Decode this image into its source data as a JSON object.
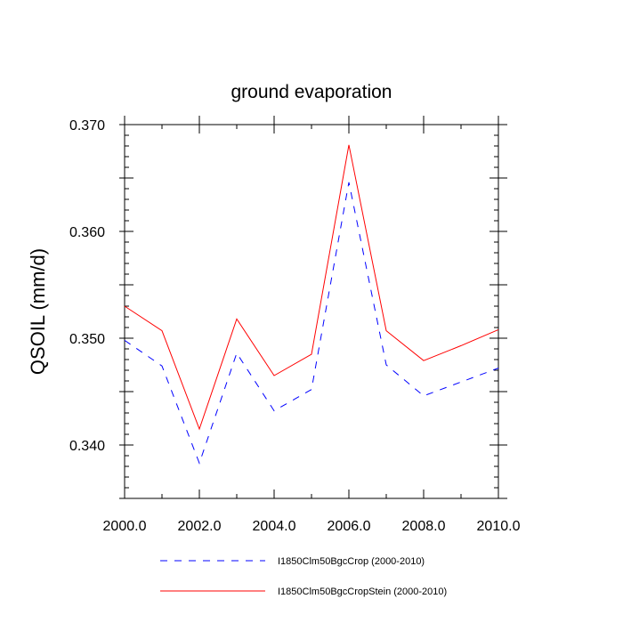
{
  "chart_data": {
    "type": "line",
    "title": "ground evaporation",
    "xlabel": "",
    "ylabel": "QSOIL  (mm/d)",
    "xlim": [
      2000,
      2010
    ],
    "ylim": [
      0.335,
      0.37
    ],
    "x": [
      2000,
      2001,
      2002,
      2003,
      2004,
      2005,
      2006,
      2007,
      2008,
      2009,
      2010
    ],
    "x_ticks": [
      2000,
      2002,
      2004,
      2006,
      2008,
      2010
    ],
    "x_tick_labels": [
      "2000.0",
      "2002.0",
      "2004.0",
      "2006.0",
      "2008.0",
      "2010.0"
    ],
    "y_ticks": [
      0.34,
      0.35,
      0.36,
      0.37
    ],
    "y_tick_labels": [
      "0.340",
      "0.350",
      "0.360",
      "0.370"
    ],
    "grid": false,
    "legend_position": "bottom",
    "series": [
      {
        "name": "I1850Clm50BgcCrop (2000-2010)",
        "color": "#0000ff",
        "dash": "dashed",
        "values": [
          0.3498,
          0.3474,
          0.3383,
          0.3486,
          0.3432,
          0.3452,
          0.3646,
          0.3475,
          0.3446,
          0.3459,
          0.3472
        ]
      },
      {
        "name": "I1850Clm50BgcCropStein (2000-2010)",
        "color": "#ff0000",
        "dash": "solid",
        "values": [
          0.353,
          0.3507,
          0.3415,
          0.3518,
          0.3465,
          0.3485,
          0.3681,
          0.3507,
          0.3479,
          0.3493,
          0.3508
        ]
      }
    ]
  }
}
